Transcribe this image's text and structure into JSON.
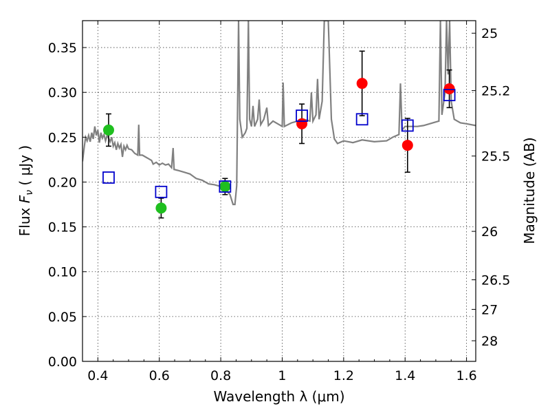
{
  "chart_data": {
    "type": "scatter",
    "title": "",
    "xlabel": "Wavelength  λ (μm)",
    "ylabel_left_parts": [
      "Flux ",
      "F",
      "ν",
      " ( μJy )"
    ],
    "ylabel_right": "Magnitude (AB)",
    "xlim": [
      0.35,
      1.63
    ],
    "ylim": [
      0.0,
      0.38
    ],
    "grid": true,
    "x_ticks": [
      0.4,
      0.6,
      0.8,
      1.0,
      1.2,
      1.4,
      1.6
    ],
    "x_tick_labels": [
      "0.4",
      "0.6",
      "0.8",
      "1",
      "1.2",
      "1.4",
      "1.6"
    ],
    "y_ticks": [
      0.0,
      0.05,
      0.1,
      0.15,
      0.2,
      0.25,
      0.3,
      0.35
    ],
    "y_tick_labels": [
      "0.00",
      "0.05",
      "0.10",
      "0.15",
      "0.20",
      "0.25",
      "0.30",
      "0.35"
    ],
    "right_ticks": [
      {
        "label": "25",
        "flux": 0.366
      },
      {
        "label": "25.2",
        "flux": 0.302
      },
      {
        "label": "25.5",
        "flux": 0.229
      },
      {
        "label": "26",
        "flux": 0.145
      },
      {
        "label": "26.5",
        "flux": 0.091
      },
      {
        "label": "27",
        "flux": 0.058
      },
      {
        "label": "28",
        "flux": 0.023
      }
    ],
    "series": [
      {
        "marker": "circle",
        "color": "#1fbf1f",
        "points": [
          {
            "x": 0.435,
            "y": 0.258,
            "err": 0.018
          },
          {
            "x": 0.606,
            "y": 0.171,
            "err": 0.011
          },
          {
            "x": 0.814,
            "y": 0.195,
            "err": 0.009
          }
        ]
      },
      {
        "marker": "circle",
        "color": "#ff0000",
        "points": [
          {
            "x": 1.064,
            "y": 0.265,
            "err": 0.022
          },
          {
            "x": 1.26,
            "y": 0.31,
            "err": 0.036
          },
          {
            "x": 1.408,
            "y": 0.241,
            "err": 0.03
          },
          {
            "x": 1.544,
            "y": 0.304,
            "err": 0.021
          }
        ]
      },
      {
        "marker": "open-square",
        "color": "#0000cc",
        "points": [
          {
            "x": 0.435,
            "y": 0.205
          },
          {
            "x": 0.606,
            "y": 0.189
          },
          {
            "x": 0.814,
            "y": 0.195
          },
          {
            "x": 1.064,
            "y": 0.274
          },
          {
            "x": 1.26,
            "y": 0.27
          },
          {
            "x": 1.408,
            "y": 0.263
          },
          {
            "x": 1.544,
            "y": 0.297
          }
        ]
      }
    ],
    "model_spectrum": {
      "color": "#808080",
      "points": [
        [
          0.35,
          0.223
        ],
        [
          0.356,
          0.24
        ],
        [
          0.36,
          0.25
        ],
        [
          0.365,
          0.246
        ],
        [
          0.37,
          0.252
        ],
        [
          0.375,
          0.245
        ],
        [
          0.38,
          0.255
        ],
        [
          0.385,
          0.248
        ],
        [
          0.39,
          0.262
        ],
        [
          0.395,
          0.252
        ],
        [
          0.4,
          0.258
        ],
        [
          0.405,
          0.244
        ],
        [
          0.41,
          0.255
        ],
        [
          0.415,
          0.249
        ],
        [
          0.42,
          0.253
        ],
        [
          0.425,
          0.246
        ],
        [
          0.43,
          0.252
        ],
        [
          0.435,
          0.249
        ],
        [
          0.44,
          0.245
        ],
        [
          0.445,
          0.25
        ],
        [
          0.45,
          0.24
        ],
        [
          0.455,
          0.244
        ],
        [
          0.46,
          0.236
        ],
        [
          0.465,
          0.243
        ],
        [
          0.47,
          0.238
        ],
        [
          0.475,
          0.242
        ],
        [
          0.48,
          0.228
        ],
        [
          0.485,
          0.24
        ],
        [
          0.49,
          0.236
        ],
        [
          0.495,
          0.241
        ],
        [
          0.5,
          0.237
        ],
        [
          0.51,
          0.236
        ],
        [
          0.52,
          0.232
        ],
        [
          0.53,
          0.23
        ],
        [
          0.533,
          0.264
        ],
        [
          0.536,
          0.23
        ],
        [
          0.545,
          0.23
        ],
        [
          0.555,
          0.228
        ],
        [
          0.565,
          0.226
        ],
        [
          0.575,
          0.224
        ],
        [
          0.58,
          0.22
        ],
        [
          0.59,
          0.222
        ],
        [
          0.6,
          0.219
        ],
        [
          0.61,
          0.221
        ],
        [
          0.62,
          0.219
        ],
        [
          0.63,
          0.22
        ],
        [
          0.64,
          0.216
        ],
        [
          0.645,
          0.238
        ],
        [
          0.648,
          0.214
        ],
        [
          0.66,
          0.213
        ],
        [
          0.68,
          0.211
        ],
        [
          0.7,
          0.209
        ],
        [
          0.72,
          0.204
        ],
        [
          0.74,
          0.202
        ],
        [
          0.76,
          0.198
        ],
        [
          0.78,
          0.197
        ],
        [
          0.8,
          0.195
        ],
        [
          0.82,
          0.19
        ],
        [
          0.83,
          0.186
        ],
        [
          0.84,
          0.175
        ],
        [
          0.846,
          0.175
        ],
        [
          0.852,
          0.196
        ],
        [
          0.858,
          0.38
        ],
        [
          0.862,
          0.27
        ],
        [
          0.87,
          0.25
        ],
        [
          0.88,
          0.255
        ],
        [
          0.885,
          0.26
        ],
        [
          0.89,
          0.38
        ],
        [
          0.894,
          0.27
        ],
        [
          0.9,
          0.262
        ],
        [
          0.905,
          0.285
        ],
        [
          0.91,
          0.262
        ],
        [
          0.92,
          0.27
        ],
        [
          0.925,
          0.292
        ],
        [
          0.93,
          0.264
        ],
        [
          0.94,
          0.27
        ],
        [
          0.95,
          0.283
        ],
        [
          0.955,
          0.263
        ],
        [
          0.97,
          0.268
        ],
        [
          0.99,
          0.264
        ],
        [
          1.0,
          0.262
        ],
        [
          1.003,
          0.311
        ],
        [
          1.007,
          0.262
        ],
        [
          1.03,
          0.266
        ],
        [
          1.05,
          0.268
        ],
        [
          1.07,
          0.27
        ],
        [
          1.09,
          0.268
        ],
        [
          1.095,
          0.3
        ],
        [
          1.1,
          0.268
        ],
        [
          1.11,
          0.275
        ],
        [
          1.115,
          0.315
        ],
        [
          1.12,
          0.27
        ],
        [
          1.13,
          0.29
        ],
        [
          1.137,
          0.38
        ],
        [
          1.15,
          0.38
        ],
        [
          1.16,
          0.27
        ],
        [
          1.17,
          0.248
        ],
        [
          1.18,
          0.243
        ],
        [
          1.2,
          0.246
        ],
        [
          1.23,
          0.244
        ],
        [
          1.26,
          0.247
        ],
        [
          1.3,
          0.245
        ],
        [
          1.34,
          0.246
        ],
        [
          1.36,
          0.25
        ],
        [
          1.38,
          0.253
        ],
        [
          1.385,
          0.31
        ],
        [
          1.39,
          0.258
        ],
        [
          1.4,
          0.262
        ],
        [
          1.42,
          0.262
        ],
        [
          1.44,
          0.262
        ],
        [
          1.46,
          0.263
        ],
        [
          1.48,
          0.265
        ],
        [
          1.5,
          0.267
        ],
        [
          1.51,
          0.268
        ],
        [
          1.515,
          0.38
        ],
        [
          1.52,
          0.275
        ],
        [
          1.53,
          0.3
        ],
        [
          1.535,
          0.38
        ],
        [
          1.54,
          0.32
        ],
        [
          1.545,
          0.38
        ],
        [
          1.55,
          0.29
        ],
        [
          1.56,
          0.27
        ],
        [
          1.58,
          0.266
        ],
        [
          1.6,
          0.265
        ],
        [
          1.63,
          0.263
        ]
      ]
    }
  }
}
